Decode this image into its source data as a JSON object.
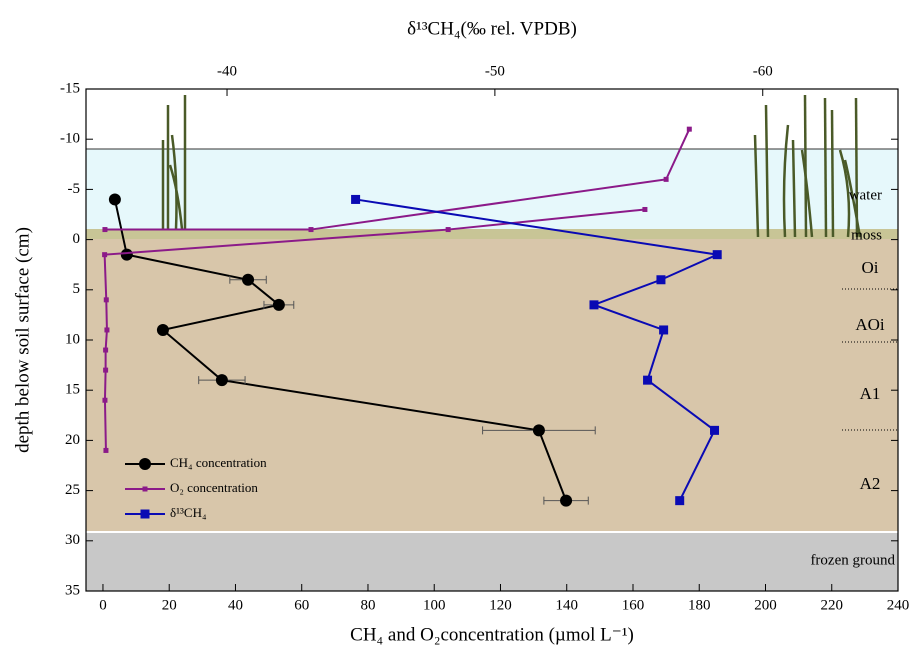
{
  "chart_data": {
    "type": "scatter",
    "x_label": "CH₄ and O₂concentration (µmol L⁻¹)",
    "x2_label": "δ¹³CH₄(‰ rel. VPDB)",
    "y_label": "depth below soil surface (cm)",
    "xlim": [
      -5,
      240
    ],
    "xticks": [
      0,
      20,
      40,
      60,
      80,
      100,
      120,
      140,
      160,
      180,
      200,
      220,
      240
    ],
    "x2lim": [
      -34.75,
      -65.05
    ],
    "x2ticks": [
      -40,
      -50,
      -60
    ],
    "ylim": [
      -15,
      35
    ],
    "yticks": [
      -15,
      -10,
      -5,
      0,
      5,
      10,
      15,
      20,
      25,
      30,
      35
    ],
    "annotations": [
      "water",
      "moss",
      "Oi",
      "AOi",
      "A1",
      "A2",
      "frozen ground"
    ],
    "series": [
      {
        "name": "CH₄ concentration",
        "color": "#000000",
        "marker": "circle",
        "x": [
          3.6,
          7.2,
          43.8,
          53.1,
          18.1,
          35.9,
          131.6,
          139.8
        ],
        "xerr": [
          null,
          null,
          5.5,
          4.5,
          null,
          7,
          17,
          6.7
        ],
        "values": [
          -4,
          1.5,
          4,
          6.5,
          9,
          14,
          19,
          26
        ]
      },
      {
        "name": "O₂ concentration",
        "color": "#8b1a89",
        "marker": "small-square",
        "x": [
          177,
          170,
          62.8,
          0.6,
          null,
          163.6,
          104.2,
          0.5,
          1,
          1.2,
          0.8,
          0.8,
          0.6,
          0.9
        ],
        "values": [
          -11,
          -6,
          -1,
          -1,
          null,
          -3,
          -1,
          1.5,
          6,
          9,
          11,
          13,
          16,
          21
        ]
      },
      {
        "name": "δ¹³CH₄",
        "color": "#0a0ab4",
        "marker": "square",
        "axis": "x2",
        "x": [
          -44.8,
          -58.3,
          -56.2,
          -53.7,
          -56.3,
          -55.7,
          -58.2,
          -56.9
        ],
        "values": [
          -4,
          1.5,
          4,
          6.5,
          9,
          14,
          19,
          26
        ]
      }
    ]
  }
}
